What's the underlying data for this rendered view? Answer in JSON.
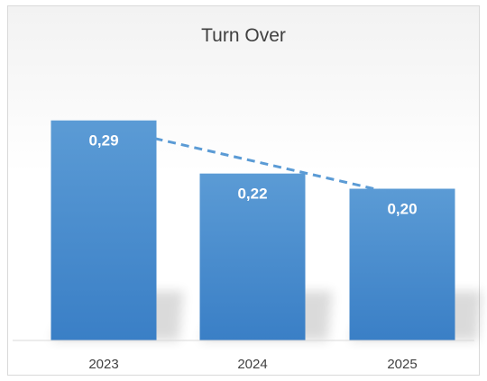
{
  "chart_data": {
    "type": "bar",
    "title": "Turn Over",
    "xlabel": "",
    "ylabel": "",
    "categories": [
      "2023",
      "2024",
      "2025"
    ],
    "values": [
      0.29,
      0.22,
      0.2
    ],
    "data_labels": [
      "0,29",
      "0,22",
      "0,20"
    ],
    "ylim": [
      0,
      0.33
    ],
    "grid": false,
    "legend": "none",
    "trendline": "linear dashed",
    "colors": {
      "bar_top": "#5b9bd5",
      "bar_bottom": "#3a7fc6",
      "trendline": "#5b9bd5",
      "text": "#404040",
      "axis": "#d9d9d9"
    }
  }
}
